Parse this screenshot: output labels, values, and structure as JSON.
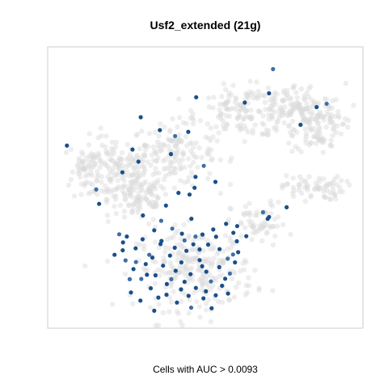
{
  "chart_data": {
    "type": "scatter",
    "title": "Usf2_extended (21g)",
    "xlabel": "Cells with AUC > 0.0093",
    "ylabel": "",
    "xlim": [
      0,
      100
    ],
    "ylim": [
      0,
      100
    ],
    "grid": false,
    "legend": "none",
    "colors": {
      "background_cells": "#d9d9d9",
      "highlight_cells": "#1b4f8a",
      "panel_border": "#cccccc"
    },
    "series": [
      {
        "role": "background",
        "clusters": [
          {
            "cx": 21,
            "cy": 56,
            "rx": 12,
            "ry": 11,
            "n": 170
          },
          {
            "cx": 40,
            "cy": 62,
            "rx": 12,
            "ry": 10,
            "n": 150
          },
          {
            "cx": 29,
            "cy": 46,
            "rx": 9,
            "ry": 8,
            "n": 90
          },
          {
            "cx": 62,
            "cy": 77,
            "rx": 13,
            "ry": 8,
            "n": 130
          },
          {
            "cx": 79,
            "cy": 77,
            "rx": 14,
            "ry": 9,
            "n": 150
          },
          {
            "cx": 86,
            "cy": 71,
            "rx": 7,
            "ry": 8,
            "n": 70
          },
          {
            "cx": 84,
            "cy": 50,
            "rx": 9,
            "ry": 4,
            "n": 70
          },
          {
            "cx": 67,
            "cy": 37,
            "rx": 8,
            "ry": 7,
            "n": 60
          },
          {
            "cx": 47,
            "cy": 21,
            "rx": 17,
            "ry": 13,
            "n": 260
          },
          {
            "cx": 12,
            "cy": 58,
            "rx": 3,
            "ry": 5,
            "n": 30
          }
        ]
      },
      {
        "role": "highlight",
        "points": [
          [
            71.5,
            92.1
          ],
          [
            70.2,
            83.5
          ],
          [
            62.5,
            80.2
          ],
          [
            47.1,
            82.1
          ],
          [
            85.3,
            78.6
          ],
          [
            88.5,
            79.8
          ],
          [
            80.2,
            72.3
          ],
          [
            29.5,
            75.0
          ],
          [
            35.6,
            70.4
          ],
          [
            44.6,
            69.8
          ],
          [
            40.4,
            68.3
          ],
          [
            6.1,
            64.9
          ],
          [
            26.9,
            63.5
          ],
          [
            39.1,
            61.9
          ],
          [
            28.8,
            59.2
          ],
          [
            49.5,
            57.7
          ],
          [
            23.7,
            55.4
          ],
          [
            46.9,
            53.8
          ],
          [
            53.2,
            52.0
          ],
          [
            46.6,
            49.9
          ],
          [
            15.4,
            49.3
          ],
          [
            41.5,
            48.1
          ],
          [
            45.0,
            47.5
          ],
          [
            16.3,
            44.2
          ],
          [
            37.5,
            43.6
          ],
          [
            68.3,
            41.2
          ],
          [
            70.2,
            39.5
          ],
          [
            75.8,
            43.0
          ],
          [
            69.8,
            38.9
          ],
          [
            30.2,
            40.1
          ],
          [
            36.0,
            38.2
          ],
          [
            60.1,
            36.3
          ],
          [
            58.9,
            33.9
          ],
          [
            49.1,
            33.3
          ],
          [
            45.6,
            38.9
          ],
          [
            39.5,
            35.4
          ],
          [
            33.8,
            34.8
          ],
          [
            52.5,
            35.1
          ],
          [
            56.6,
            37.1
          ],
          [
            63.0,
            32.7
          ],
          [
            43.4,
            31.2
          ],
          [
            46.2,
            29.8
          ],
          [
            40.3,
            28.6
          ],
          [
            35.8,
            29.9
          ],
          [
            27.9,
            28.4
          ],
          [
            32.2,
            26.1
          ],
          [
            44.0,
            27.5
          ],
          [
            50.9,
            29.7
          ],
          [
            54.5,
            28.1
          ],
          [
            60.4,
            27.0
          ],
          [
            57.1,
            24.7
          ],
          [
            48.2,
            24.2
          ],
          [
            42.4,
            23.4
          ],
          [
            36.6,
            22.2
          ],
          [
            31.1,
            22.8
          ],
          [
            24.7,
            24.1
          ],
          [
            21.2,
            26.1
          ],
          [
            23.8,
            27.7
          ],
          [
            27.2,
            21.0
          ],
          [
            34.2,
            18.8
          ],
          [
            39.2,
            17.4
          ],
          [
            45.3,
            19.2
          ],
          [
            50.3,
            20.1
          ],
          [
            54.4,
            21.7
          ],
          [
            56.3,
            17.6
          ],
          [
            51.8,
            16.6
          ],
          [
            47.0,
            14.3
          ],
          [
            42.3,
            13.8
          ],
          [
            37.7,
            11.9
          ],
          [
            32.7,
            14.2
          ],
          [
            29.7,
            17.5
          ],
          [
            26.4,
            12.7
          ],
          [
            29.4,
            9.8
          ],
          [
            33.8,
            6.2
          ],
          [
            41.0,
            9.1
          ],
          [
            45.5,
            7.3
          ],
          [
            49.4,
            10.6
          ],
          [
            53.3,
            11.7
          ],
          [
            52.0,
            7.1
          ],
          [
            57.2,
            12.3
          ],
          [
            57.8,
            19.4
          ],
          [
            59.4,
            23.4
          ],
          [
            38.8,
            25.8
          ],
          [
            43.4,
            16.5
          ],
          [
            48.2,
            28.0
          ],
          [
            26.0,
            17.4
          ],
          [
            36.1,
            31.0
          ],
          [
            53.4,
            32.5
          ],
          [
            30.1,
            31.6
          ],
          [
            60.0,
            30.9
          ],
          [
            22.7,
            33.4
          ],
          [
            25.1,
            32.6
          ],
          [
            33.2,
            25.1
          ],
          [
            49.0,
            22.0
          ],
          [
            40.6,
            20.4
          ],
          [
            28.0,
            23.5
          ],
          [
            37.8,
            15.7
          ],
          [
            44.7,
            11.5
          ],
          [
            55.3,
            15.1
          ],
          [
            23.9,
            30.5
          ],
          [
            58.8,
            26.2
          ],
          [
            31.5,
            19.0
          ],
          [
            35.1,
            10.9
          ],
          [
            50.2,
            13.1
          ],
          [
            42.6,
            33.6
          ],
          [
            46.9,
            32.6
          ]
        ]
      }
    ]
  }
}
